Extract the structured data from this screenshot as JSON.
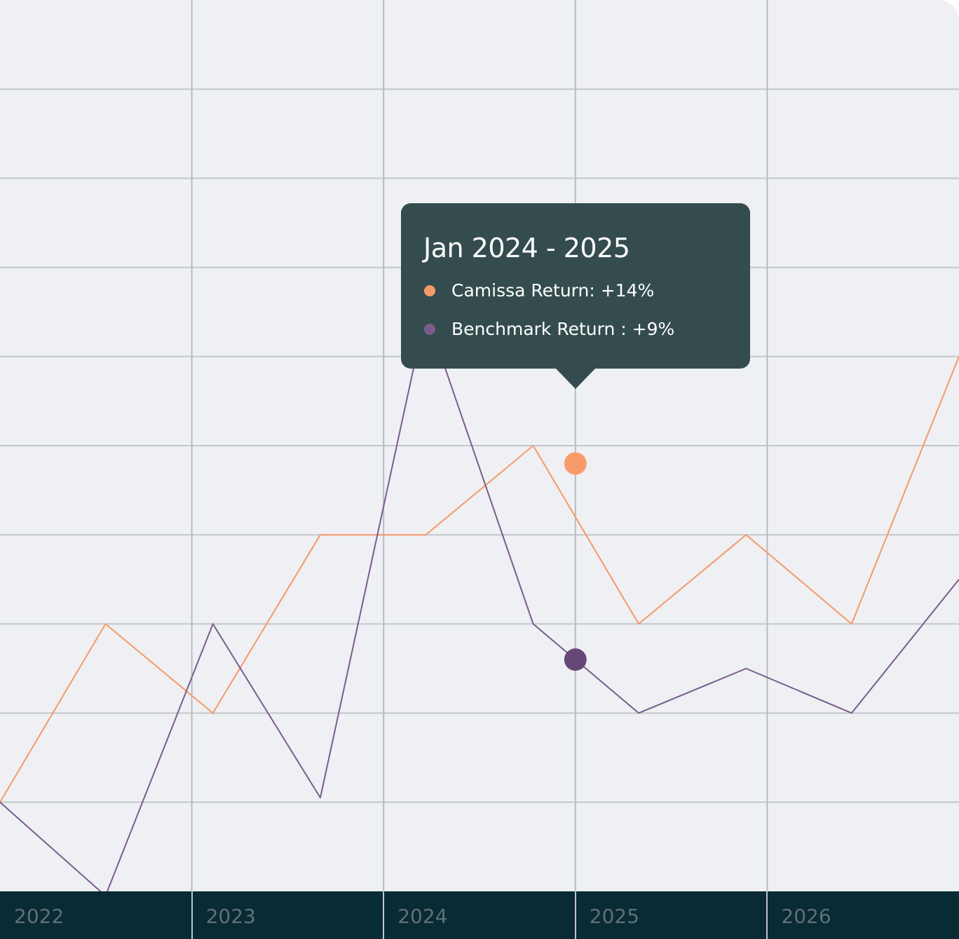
{
  "chart_data": {
    "type": "line",
    "x": [
      2022.0,
      2022.55,
      2023.11,
      2023.67,
      2024.22,
      2024.78,
      2025.33,
      2025.89,
      2026.44,
      2027.0
    ],
    "x_ticks": [
      "2022",
      "2023",
      "2024",
      "2025",
      "2026"
    ],
    "series": [
      {
        "name": "Camissa Return",
        "color": "#f59a6a",
        "values": [
          1.0,
          3.0,
          2.0,
          4.0,
          4.0,
          5.0,
          3.0,
          4.0,
          3.0,
          6.0
        ]
      },
      {
        "name": "Benchmark Return",
        "color": "#7a5d8c",
        "values": [
          1.0,
          -0.05,
          3.0,
          1.05,
          6.5,
          3.0,
          2.0,
          2.5,
          2.0,
          3.5
        ]
      }
    ],
    "grid": true,
    "tooltip": {
      "title": "Jan 2024 - 2025",
      "rows": [
        {
          "label": "Camissa Return: +14%",
          "color": "#f59a6a"
        },
        {
          "label": "Benchmark Return : +9%",
          "color": "#7a5d8c"
        }
      ],
      "x": 2025.0,
      "values": [
        4.8,
        2.6
      ],
      "marker_colors": [
        "#f99a6a",
        "#664878"
      ]
    }
  }
}
